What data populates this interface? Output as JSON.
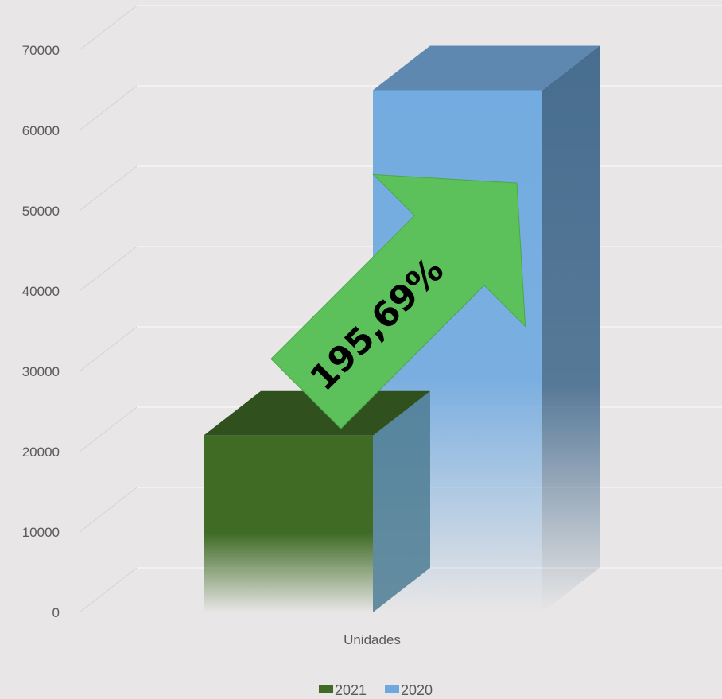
{
  "chart_data": {
    "type": "bar",
    "categories": [
      "Unidades"
    ],
    "series": [
      {
        "name": "2021",
        "values": [
          22000
        ],
        "color": "#3f6b25"
      },
      {
        "name": "2020",
        "values": [
          65000
        ],
        "color": "#6ea8de"
      }
    ],
    "ylim": [
      0,
      70000
    ],
    "yticks": [
      "0",
      "10000",
      "20000",
      "30000",
      "40000",
      "50000",
      "60000",
      "70000"
    ],
    "annotation": "195,69%",
    "annotation_color": "#5cc15a",
    "grid": true,
    "legend_position": "bottom"
  }
}
